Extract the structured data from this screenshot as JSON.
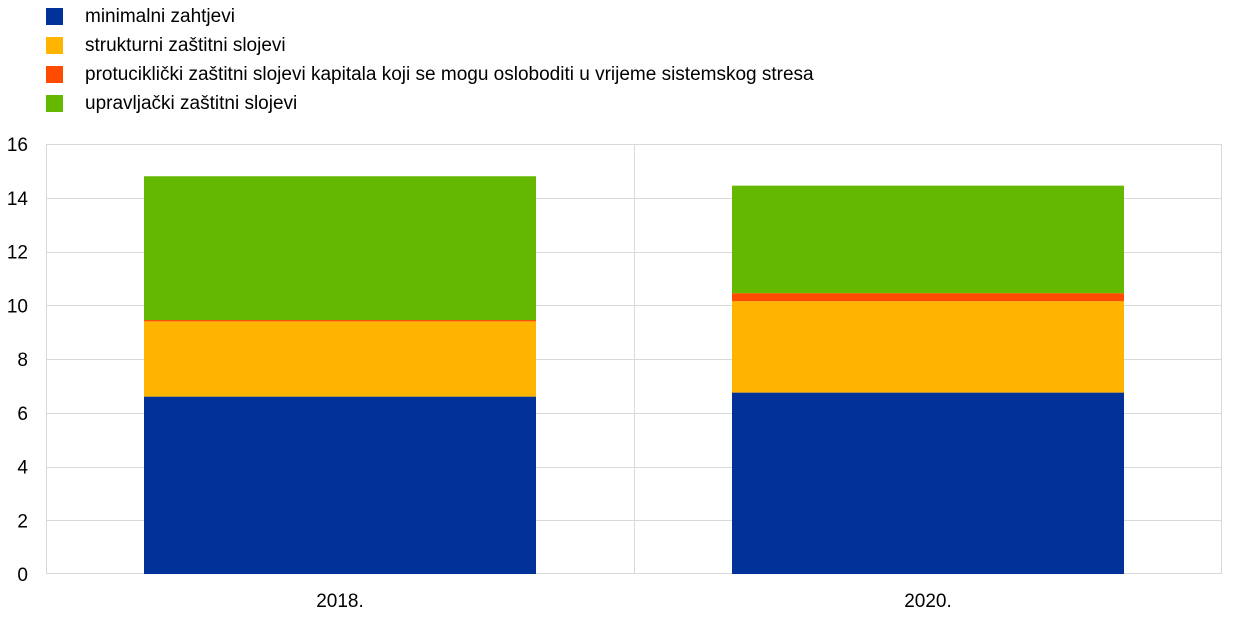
{
  "chart_data": {
    "type": "bar",
    "stacked": true,
    "categories": [
      "2018.",
      "2020."
    ],
    "series": [
      {
        "name": "minimalni zahtjevi",
        "color": "#003299",
        "values": [
          6.6,
          6.75
        ]
      },
      {
        "name": "strukturni zaštitni slojevi",
        "color": "#FFB400",
        "values": [
          2.8,
          3.4
        ]
      },
      {
        "name": "protuciklički zaštitni slojevi kapitala koji se mogu osloboditi u vrijeme sistemskog stresa",
        "color": "#FF4B00",
        "values": [
          0.05,
          0.3
        ]
      },
      {
        "name": "upravljački zaštitni slojevi",
        "color": "#65B800",
        "values": [
          5.35,
          4.0
        ]
      }
    ],
    "ylim": [
      0,
      16
    ],
    "yticks": [
      0,
      2,
      4,
      6,
      8,
      10,
      12,
      14,
      16
    ],
    "grid": true,
    "legend_position": "top-left"
  }
}
